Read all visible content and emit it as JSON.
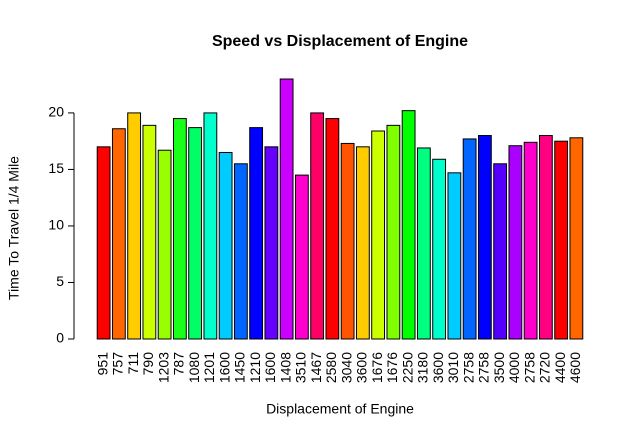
{
  "chart_data": {
    "type": "bar",
    "title": "Speed vs Displacement of Engine",
    "x_label": "Displacement of Engine",
    "y_label": "Time To Travel 1/4 Mile",
    "categories": [
      "951",
      "757",
      "711",
      "790",
      "1203",
      "787",
      "1080",
      "1201",
      "1600",
      "1450",
      "1210",
      "1600",
      "1408",
      "3510",
      "1467",
      "2580",
      "3040",
      "3600",
      "1676",
      "1676",
      "2250",
      "3180",
      "3600",
      "3010",
      "2758",
      "2758",
      "3500",
      "4000",
      "2758",
      "2720",
      "4400",
      "4600"
    ],
    "values": [
      17.0,
      18.6,
      20.0,
      18.9,
      16.7,
      19.5,
      18.7,
      20.0,
      16.5,
      15.5,
      18.7,
      17.0,
      23.0,
      14.5,
      20.0,
      19.5,
      17.3,
      17.0,
      18.4,
      18.9,
      20.2,
      16.9,
      15.9,
      14.7,
      17.7,
      18.0,
      15.5,
      17.1,
      17.4,
      18.0,
      17.5,
      17.8
    ],
    "colors": [
      "#ff0000",
      "#ff6600",
      "#ffcc00",
      "#ccff00",
      "#99ff00",
      "#1aff1a",
      "#00ff66",
      "#00ffcc",
      "#00ccff",
      "#0066ff",
      "#0000ff",
      "#6600ff",
      "#cc00ff",
      "#ff00cc",
      "#ff0066",
      "#ff0000",
      "#ff5500",
      "#ffcc00",
      "#ccff00",
      "#80ff00",
      "#00ff00",
      "#00ff80",
      "#00ffcc",
      "#00ccff",
      "#0066ff",
      "#0000ff",
      "#5500ff",
      "#aa00ff",
      "#ff00cc",
      "#ff0080",
      "#ff0000",
      "#ff6600"
    ],
    "ylim": [
      0,
      23
    ],
    "yticks": [
      0,
      5,
      10,
      15,
      20
    ],
    "grid": false
  }
}
